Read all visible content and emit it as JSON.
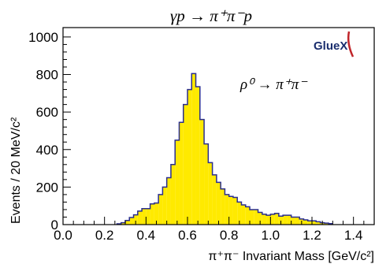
{
  "chart_data": {
    "type": "histogram",
    "title": "γp → π⁺π⁻p",
    "annotation": "ρ⁰ → π⁺π⁻",
    "logo": "GlueX",
    "xlabel": "π⁺π⁻ Invariant Mass [GeV/c²]",
    "ylabel": "Events / 20 MeV/c²",
    "xlim": [
      0.0,
      1.5
    ],
    "ylim": [
      0,
      1050
    ],
    "x_ticks": [
      0.0,
      0.2,
      0.4,
      0.6,
      0.8,
      1.0,
      1.2,
      1.4
    ],
    "x_tick_labels": [
      "0.0",
      "0.2",
      "0.4",
      "0.6",
      "0.8",
      "1.0",
      "1.2",
      "1.4"
    ],
    "y_ticks": [
      0,
      200,
      400,
      600,
      800,
      1000
    ],
    "y_tick_labels": [
      "0",
      "200",
      "400",
      "600",
      "800",
      "1000"
    ],
    "bin_width": 0.02,
    "bin_edges_start": 0.26,
    "values": [
      4,
      10,
      22,
      38,
      52,
      72,
      85,
      85,
      110,
      115,
      160,
      200,
      250,
      320,
      450,
      545,
      640,
      720,
      805,
      735,
      560,
      430,
      330,
      265,
      225,
      190,
      160,
      150,
      145,
      120,
      105,
      95,
      80,
      80,
      65,
      55,
      50,
      55,
      60,
      45,
      50,
      50,
      40,
      40,
      30,
      25,
      20,
      20,
      15,
      10,
      8,
      5
    ],
    "fill_color": "#ffea00",
    "line_color": "#2a2e8f",
    "grid": false
  }
}
